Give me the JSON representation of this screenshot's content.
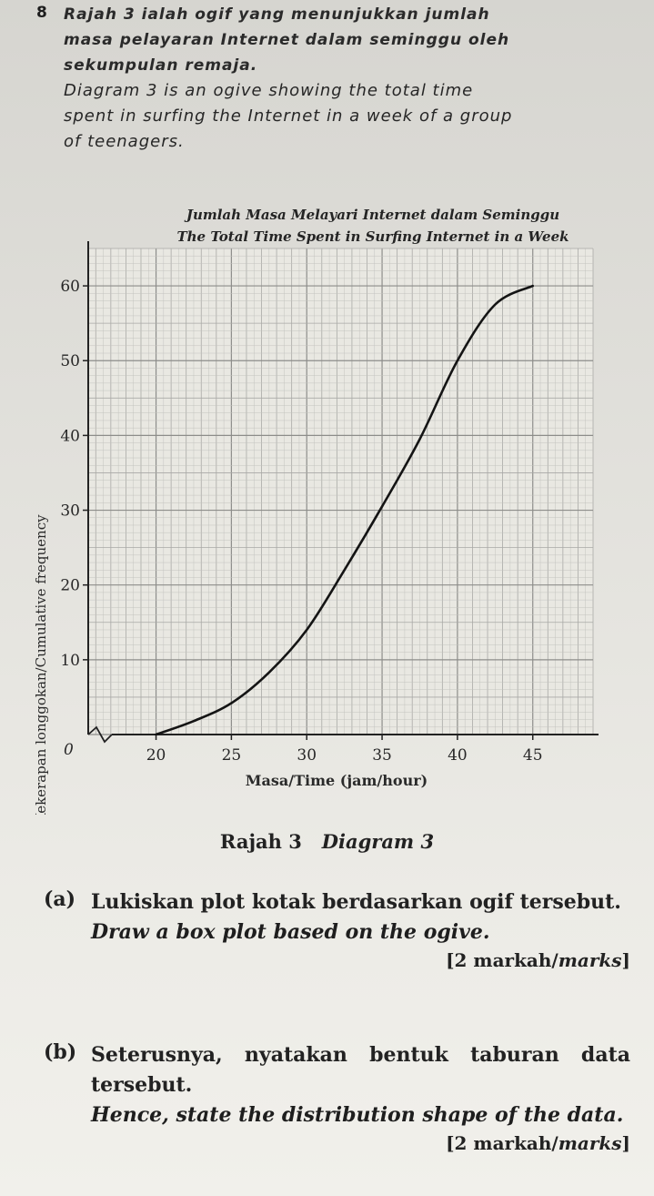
{
  "question": {
    "number": "8",
    "text_ms": [
      "Rajah 3 ialah ogif yang menunjukkan jumlah",
      "masa pelayaran Internet dalam seminggu oleh",
      "sekumpulan remaja."
    ],
    "text_en": [
      "Diagram 3 is an ogive showing the total time",
      "spent in surfing the Internet in a week of a group",
      "of teenagers."
    ]
  },
  "chart_data": {
    "type": "line",
    "title": "Jumlah Masa Melayari Internet dalam Seminggu",
    "subtitle": "The Total Time Spent in Surfing Internet in a Week",
    "xlabel": "Masa/Time (jam/hour)",
    "ylabel": "Kekerapan longgokan/Cumulative frequency",
    "origin_label": "0",
    "xticks": [
      20,
      25,
      30,
      35,
      40,
      45
    ],
    "yticks": [
      10,
      20,
      30,
      40,
      50,
      60
    ],
    "xlim": [
      15.5,
      49
    ],
    "ylim": [
      0,
      65
    ],
    "grid": true,
    "x_axis_break": true,
    "series": [
      {
        "x": [
          20,
          22.5,
          25,
          27.5,
          30,
          32.5,
          35,
          37.5,
          40,
          42.5,
          45
        ],
        "values": [
          0,
          1.8,
          4.2,
          8.3,
          14,
          22,
          30.5,
          39.5,
          50,
          57.5,
          60
        ]
      }
    ]
  },
  "caption": {
    "ms": "Rajah 3",
    "en": "Diagram 3"
  },
  "parts": [
    {
      "label": "(a)",
      "ms": "Lukiskan plot kotak berdasarkan ogif tersebut.",
      "en": "Draw a box plot based on the ogive.",
      "marks_ms": "[2 markah/",
      "marks_en": "marks",
      "marks_close": "]"
    },
    {
      "label": "(b)",
      "ms": "Seterusnya, nyatakan bentuk taburan data tersebut.",
      "en": "Hence, state the distribution shape of the data.",
      "marks_ms": "[2 markah/",
      "marks_en": "marks",
      "marks_close": "]"
    }
  ]
}
